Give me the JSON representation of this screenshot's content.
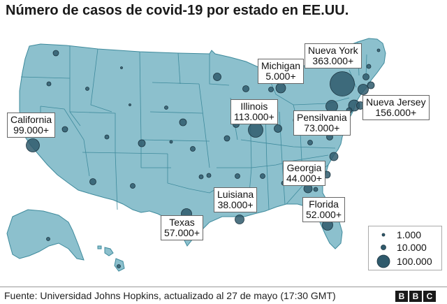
{
  "title": "Número de casos de covid-19 por estado en EE.UU.",
  "colors": {
    "land": "#8cc0cd",
    "state_border": "#3e8a9c",
    "bubble_fill": "#2f5a6c",
    "bubble_stroke": "#1c3440",
    "label_border": "#666666"
  },
  "state_labels": [
    {
      "name": "California",
      "value": "99.000+"
    },
    {
      "name": "Michigan",
      "value": "5.000+"
    },
    {
      "name": "Nueva York",
      "value": "363.000+"
    },
    {
      "name": "Illinois",
      "value": "113.000+"
    },
    {
      "name": "Nueva Jersey",
      "value": "156.000+"
    },
    {
      "name": "Pensilvania",
      "value": "73.000+"
    },
    {
      "name": "Georgia",
      "value": "44.000+"
    },
    {
      "name": "Luisiana",
      "value": "38.000+"
    },
    {
      "name": "Florida",
      "value": "52.000+"
    },
    {
      "name": "Texas",
      "value": "57.000+"
    }
  ],
  "legend": [
    {
      "label": "1.000",
      "cases": 1000
    },
    {
      "label": "10.000",
      "cases": 10000
    },
    {
      "label": "100.000",
      "cases": 100000
    }
  ],
  "source": "Fuente: Universidad Johns Hopkins, actualizado al 27 de mayo (17:30 GMT)",
  "logo": [
    "B",
    "B",
    "C"
  ]
}
